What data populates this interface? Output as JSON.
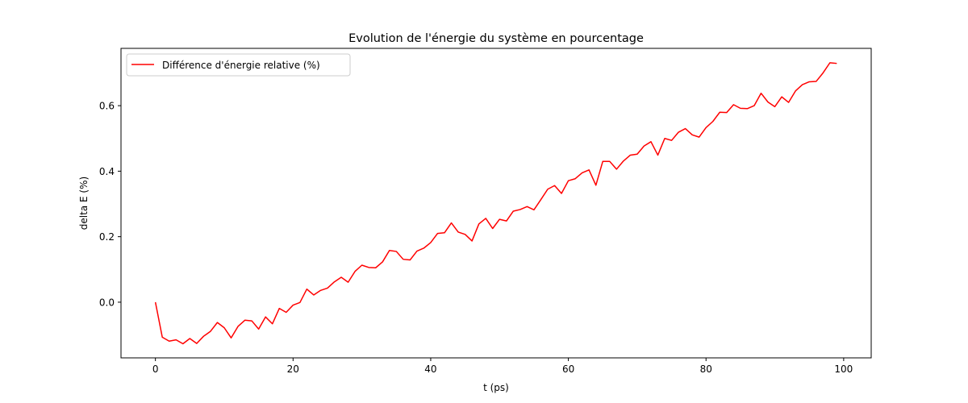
{
  "chart_data": {
    "type": "line",
    "title": "Evolution de l'énergie du système en pourcentage",
    "xlabel": "t (ps)",
    "ylabel": "delta E (%)",
    "xlim": [
      -5,
      104
    ],
    "ylim": [
      -0.17,
      0.775
    ],
    "x_ticks": [
      0,
      20,
      40,
      60,
      80,
      100
    ],
    "x_tick_labels": [
      "0",
      "20",
      "40",
      "60",
      "80",
      "100"
    ],
    "y_ticks": [
      0.0,
      0.2,
      0.4,
      0.6
    ],
    "y_tick_labels": [
      "0.0",
      "0.2",
      "0.4",
      "0.6"
    ],
    "grid": false,
    "legend_position": "upper-left",
    "series": [
      {
        "name": "Différence d'énergie relative (%)",
        "color": "#ff0000",
        "x": [
          0,
          1,
          2,
          3,
          4,
          5,
          6,
          7,
          8,
          9,
          10,
          11,
          12,
          13,
          14,
          15,
          16,
          17,
          18,
          19,
          20,
          21,
          22,
          23,
          24,
          25,
          26,
          27,
          28,
          29,
          30,
          31,
          32,
          33,
          34,
          35,
          36,
          37,
          38,
          39,
          40,
          41,
          42,
          43,
          44,
          45,
          46,
          47,
          48,
          49,
          50,
          51,
          52,
          53,
          54,
          55,
          56,
          57,
          58,
          59,
          60,
          61,
          62,
          63,
          64,
          65,
          66,
          67,
          68,
          69,
          70,
          71,
          72,
          73,
          74,
          75,
          76,
          77,
          78,
          79,
          80,
          81,
          82,
          83,
          84,
          85,
          86,
          87,
          88,
          89,
          90,
          91,
          92,
          93,
          94,
          95,
          96,
          97,
          98,
          99
        ],
        "values": [
          0.0,
          -0.107,
          -0.119,
          -0.115,
          -0.127,
          -0.111,
          -0.126,
          -0.104,
          -0.089,
          -0.062,
          -0.078,
          -0.109,
          -0.074,
          -0.055,
          -0.057,
          -0.082,
          -0.045,
          -0.066,
          -0.019,
          -0.031,
          -0.009,
          -0.001,
          0.04,
          0.022,
          0.036,
          0.043,
          0.062,
          0.076,
          0.061,
          0.094,
          0.113,
          0.106,
          0.105,
          0.123,
          0.158,
          0.155,
          0.131,
          0.129,
          0.156,
          0.165,
          0.182,
          0.21,
          0.212,
          0.242,
          0.214,
          0.207,
          0.187,
          0.239,
          0.256,
          0.225,
          0.253,
          0.248,
          0.278,
          0.283,
          0.292,
          0.282,
          0.313,
          0.345,
          0.356,
          0.332,
          0.371,
          0.377,
          0.395,
          0.404,
          0.357,
          0.43,
          0.43,
          0.406,
          0.431,
          0.449,
          0.452,
          0.477,
          0.49,
          0.449,
          0.5,
          0.494,
          0.519,
          0.53,
          0.511,
          0.504,
          0.533,
          0.552,
          0.58,
          0.579,
          0.603,
          0.592,
          0.591,
          0.6,
          0.638,
          0.611,
          0.597,
          0.627,
          0.61,
          0.645,
          0.664,
          0.673,
          0.674,
          0.7,
          0.731,
          0.729
        ]
      }
    ]
  }
}
